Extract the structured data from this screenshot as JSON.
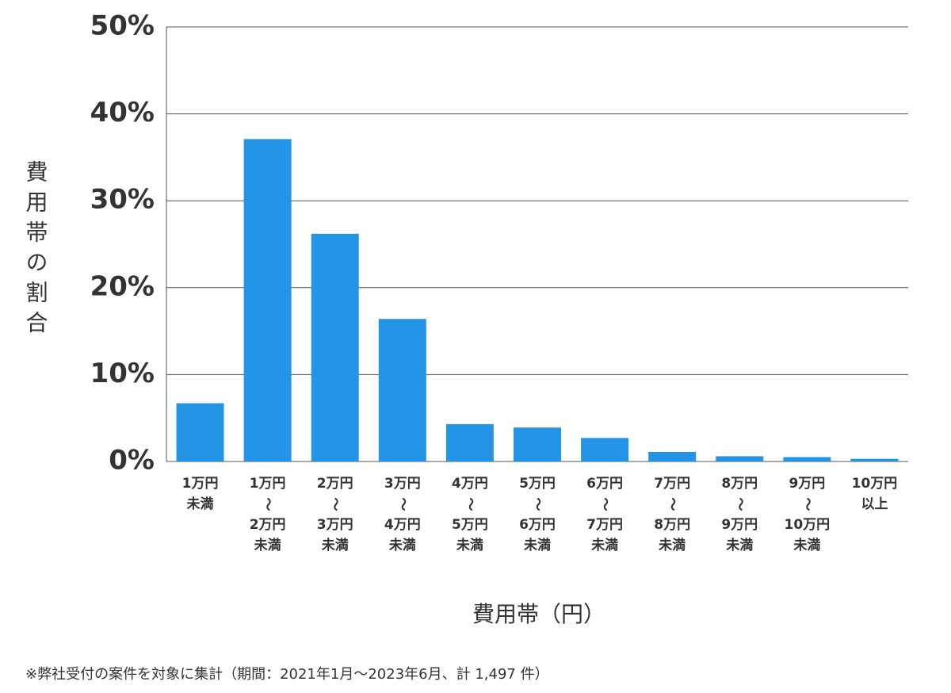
{
  "chart_data": {
    "type": "bar",
    "y_label": "費用帯の割合",
    "x_label": "費用帯（円）",
    "note": "※弊社受付の案件を対象に集計（期間：2021年1月～2023年6月、計 1,497 件）",
    "categories": [
      [
        "1万円",
        "未満"
      ],
      [
        "1万円",
        "〜",
        "2万円",
        "未満"
      ],
      [
        "2万円",
        "〜",
        "3万円",
        "未満"
      ],
      [
        "3万円",
        "〜",
        "4万円",
        "未満"
      ],
      [
        "4万円",
        "〜",
        "5万円",
        "未満"
      ],
      [
        "5万円",
        "〜",
        "6万円",
        "未満"
      ],
      [
        "6万円",
        "〜",
        "7万円",
        "未満"
      ],
      [
        "7万円",
        "〜",
        "8万円",
        "未満"
      ],
      [
        "8万円",
        "〜",
        "9万円",
        "未満"
      ],
      [
        "9万円",
        "〜",
        "10万円",
        "未満"
      ],
      [
        "10万円",
        "以上"
      ]
    ],
    "values": [
      6.7,
      37.1,
      26.2,
      16.4,
      4.3,
      3.9,
      2.7,
      1.1,
      0.6,
      0.5,
      0.3
    ],
    "color": "#2394e6",
    "ylim": [
      0,
      50
    ],
    "yticks": [
      {
        "value": 0,
        "label": "0%"
      },
      {
        "value": 10,
        "label": "10%"
      },
      {
        "value": 20,
        "label": "20%"
      },
      {
        "value": 30,
        "label": "30%"
      },
      {
        "value": 40,
        "label": "40%"
      },
      {
        "value": 50,
        "label": "50%"
      }
    ],
    "grid": true
  }
}
